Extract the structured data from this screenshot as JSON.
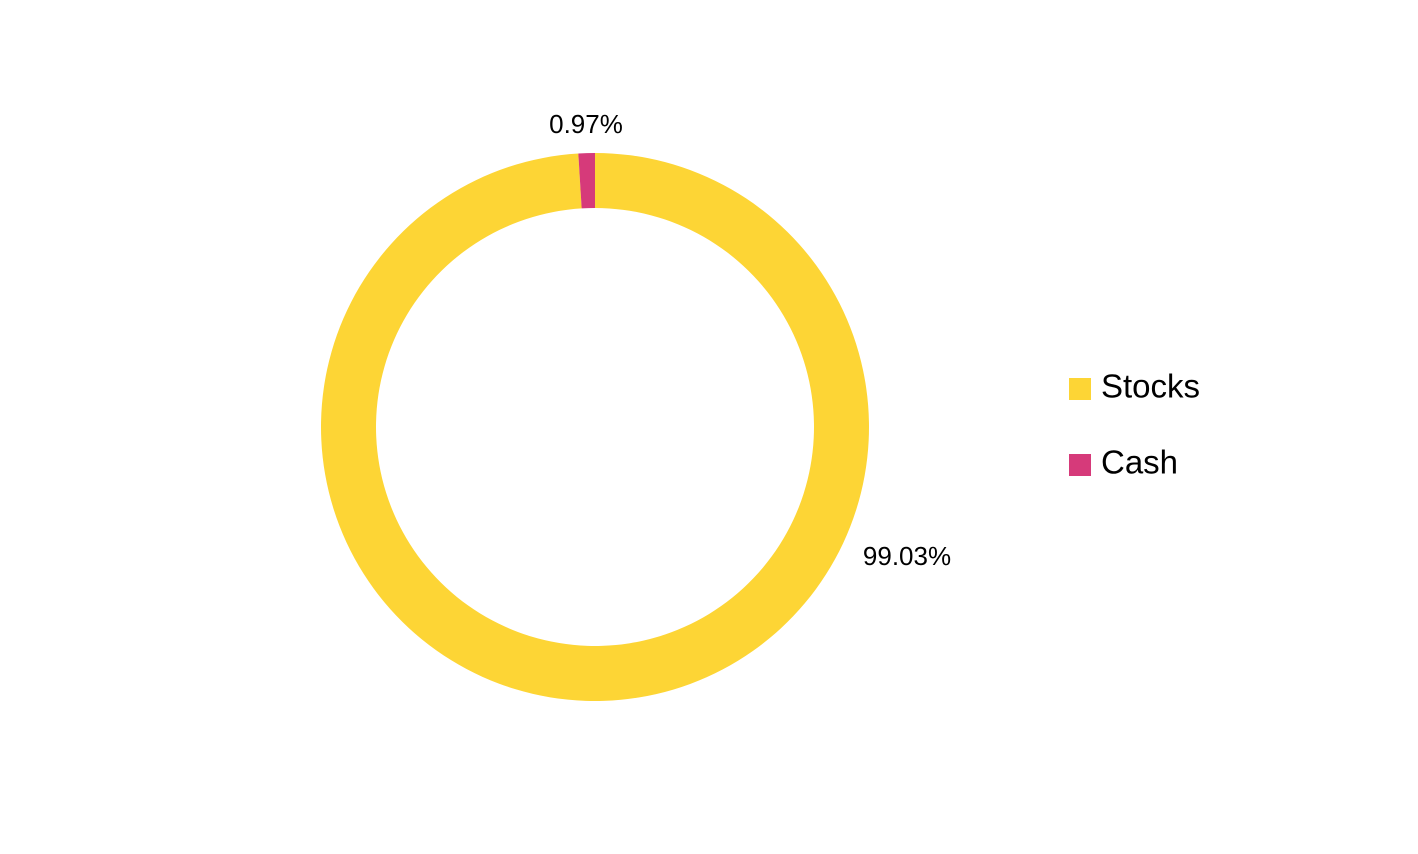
{
  "chart_data": {
    "type": "donut",
    "categories": [
      "Stocks",
      "Cash"
    ],
    "values": [
      99.03,
      0.97
    ],
    "value_labels": [
      "99.03%",
      "0.97%"
    ],
    "colors": [
      "#FDD535",
      "#D63A7A"
    ],
    "legend": "right"
  }
}
